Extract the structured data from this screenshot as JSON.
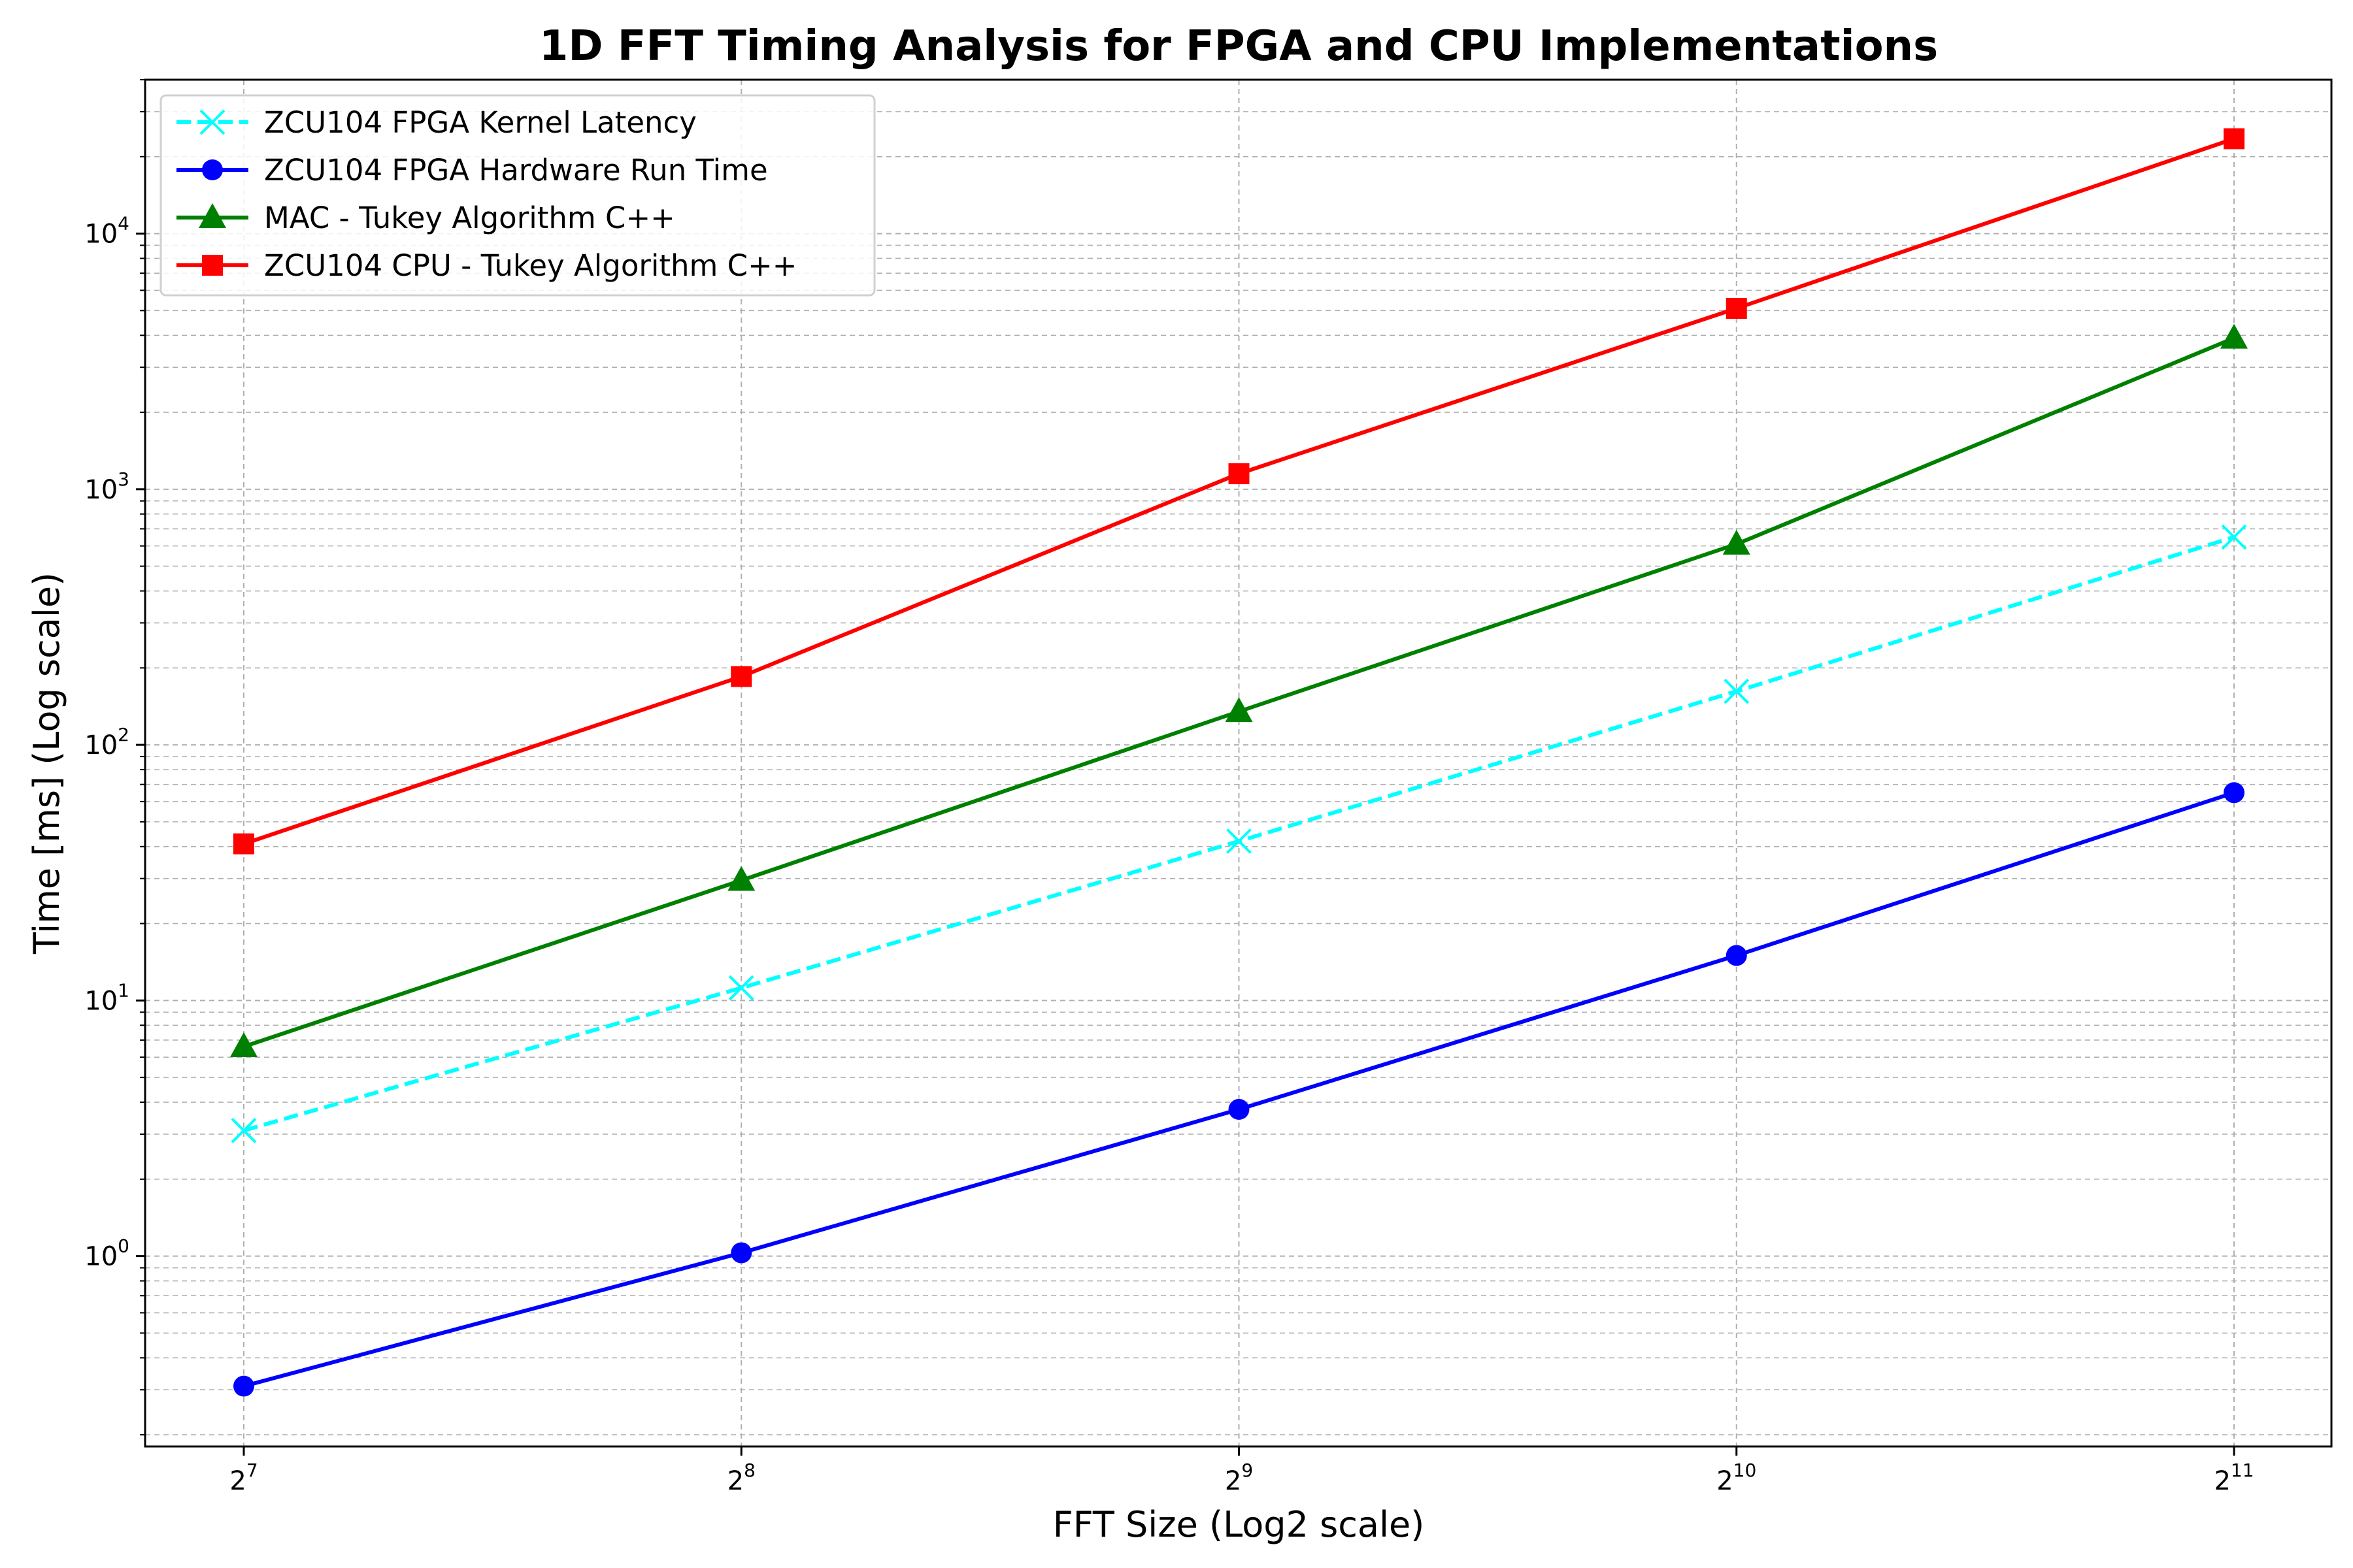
{
  "chart_data": {
    "type": "line",
    "title": "1D FFT Timing Analysis for FPGA and CPU Implementations",
    "xlabel": "FFT Size (Log2 scale)",
    "ylabel": "Time [ms] (Log scale)",
    "x_scale": "log2",
    "y_scale": "log10",
    "x": [
      128,
      256,
      512,
      1024,
      2048
    ],
    "x_tick_labels": [
      {
        "base": "2",
        "exp": "7"
      },
      {
        "base": "2",
        "exp": "8"
      },
      {
        "base": "2",
        "exp": "9"
      },
      {
        "base": "2",
        "exp": "10"
      },
      {
        "base": "2",
        "exp": "11"
      }
    ],
    "y_tick_labels": [
      {
        "base": "10",
        "exp": "0"
      },
      {
        "base": "10",
        "exp": "1"
      },
      {
        "base": "10",
        "exp": "2"
      },
      {
        "base": "10",
        "exp": "3"
      },
      {
        "base": "10",
        "exp": "4"
      }
    ],
    "ylim": [
      0.18,
      40000
    ],
    "grid": true,
    "legend_position": "upper-left",
    "series": [
      {
        "name": "ZCU104 FPGA Kernel Latency",
        "values": [
          3.1,
          11.2,
          42,
          162,
          650
        ],
        "color": "#00ffff",
        "marker": "x",
        "line_style": "dashed"
      },
      {
        "name": "ZCU104 FPGA Hardware Run Time",
        "values": [
          0.31,
          1.03,
          3.75,
          15,
          65
        ],
        "color": "#0000ff",
        "marker": "circle",
        "line_style": "solid"
      },
      {
        "name": "MAC - Tukey Algorithm C++",
        "values": [
          6.6,
          29.5,
          135,
          610,
          3900
        ],
        "color": "#008000",
        "marker": "triangle",
        "line_style": "solid"
      },
      {
        "name": "ZCU104 CPU - Tukey Algorithm C++",
        "values": [
          41,
          185,
          1150,
          5100,
          23500
        ],
        "color": "#ff0000",
        "marker": "square",
        "line_style": "solid"
      }
    ]
  }
}
